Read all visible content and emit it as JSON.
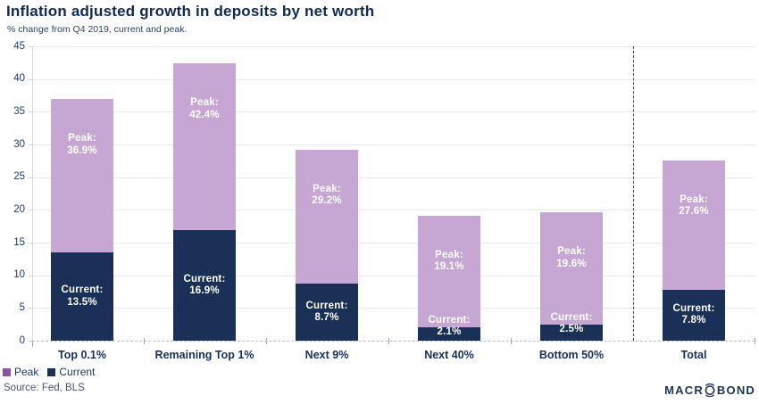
{
  "chart_data": {
    "type": "bar",
    "stacked_overlay": true,
    "title": "Inflation adjusted growth in deposits by net worth",
    "subtitle": "% change from Q4 2019, current and peak.",
    "categories": [
      "Top 0.1%",
      "Remaining Top 1%",
      "Next 9%",
      "Next 40%",
      "Bottom 50%",
      "Total"
    ],
    "series": [
      {
        "name": "Peak",
        "values": [
          36.9,
          42.4,
          29.2,
          19.1,
          19.6,
          27.6
        ],
        "color": "#c6a6d2",
        "swatch": "#8d55a0",
        "label_prefix": "Peak:"
      },
      {
        "name": "Current",
        "values": [
          13.5,
          16.9,
          8.7,
          2.1,
          2.5,
          7.8
        ],
        "color": "#1b3056",
        "swatch": "#1b3056",
        "label_prefix": "Current:"
      }
    ],
    "value_suffix": "%",
    "ylim": [
      0,
      45
    ],
    "yticks": [
      0,
      5,
      10,
      15,
      20,
      25,
      30,
      35,
      40,
      45
    ],
    "xlabel": "",
    "ylabel": "",
    "grid": "horizontal",
    "zero_line_style": "dashed",
    "separator_before_category": "Total",
    "legend_position": "bottom-left"
  },
  "footer": {
    "source": "Source: Fed, BLS",
    "logo": {
      "left": "MACR",
      "o_icon": "orbit-o-icon",
      "right": "BOND"
    }
  }
}
